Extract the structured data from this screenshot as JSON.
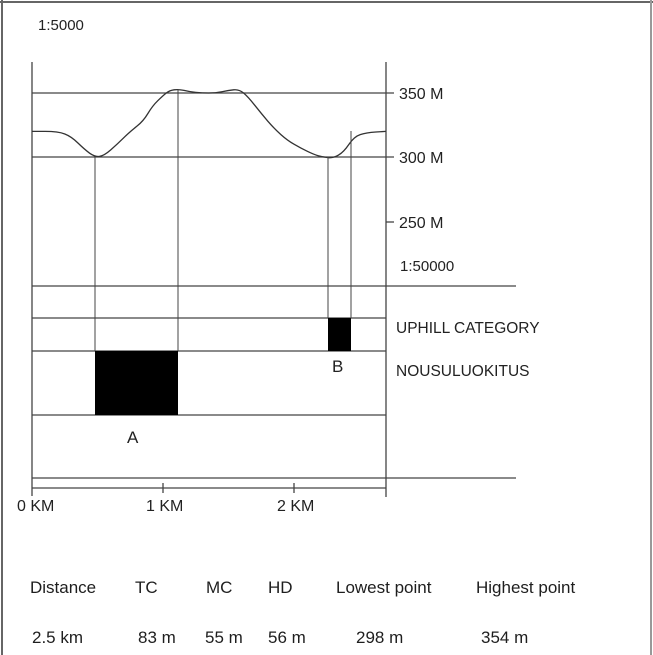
{
  "top_scale": "1:5000",
  "profile_scale": "1:50000",
  "elevation_labels": [
    "350 M",
    "300 M",
    "250 M"
  ],
  "distance_labels": [
    "0 KM",
    "1 KM",
    "2 KM"
  ],
  "category_labels": [
    "UPHILL CATEGORY",
    "NOUSULUOKITUS"
  ],
  "blocks": [
    {
      "label": "A",
      "start_km": 0.5,
      "end_km": 1.12
    },
    {
      "label": "B",
      "start_km": 2.28,
      "end_km": 2.46
    }
  ],
  "stats": {
    "headers": [
      "Distance",
      "TC",
      "MC",
      "HD",
      "Lowest point",
      "Highest point"
    ],
    "values": [
      "2.5 km",
      "83 m",
      "55 m",
      "56 m",
      "298 m",
      "354 m"
    ]
  },
  "profile": {
    "x_range_km": [
      0,
      2.7
    ],
    "y_range_m": [
      250,
      350
    ],
    "points_km_m": [
      [
        0.0,
        320
      ],
      [
        0.2,
        320
      ],
      [
        0.3,
        316
      ],
      [
        0.4,
        306
      ],
      [
        0.48,
        300
      ],
      [
        0.55,
        301
      ],
      [
        0.65,
        310
      ],
      [
        0.75,
        320
      ],
      [
        0.85,
        328
      ],
      [
        0.92,
        340
      ],
      [
        1.0,
        348
      ],
      [
        1.05,
        352
      ],
      [
        1.12,
        353
      ],
      [
        1.2,
        351
      ],
      [
        1.3,
        350
      ],
      [
        1.4,
        350
      ],
      [
        1.5,
        352
      ],
      [
        1.58,
        353
      ],
      [
        1.65,
        347
      ],
      [
        1.75,
        334
      ],
      [
        1.85,
        322
      ],
      [
        1.95,
        313
      ],
      [
        2.05,
        307
      ],
      [
        2.15,
        302
      ],
      [
        2.22,
        300
      ],
      [
        2.3,
        299
      ],
      [
        2.38,
        304
      ],
      [
        2.46,
        316
      ],
      [
        2.55,
        319
      ],
      [
        2.7,
        320
      ]
    ]
  }
}
